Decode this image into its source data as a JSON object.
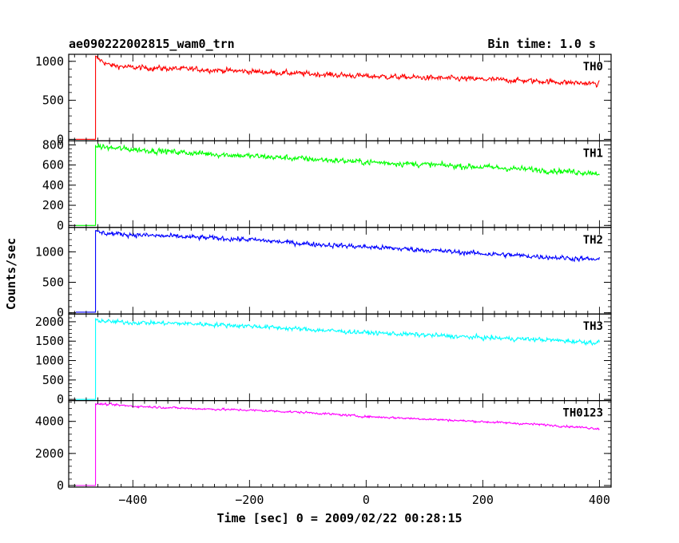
{
  "header": {
    "title": "ae090222002815_wam0_trn",
    "bin_time": "Bin time: 1.0 s"
  },
  "chart_data": {
    "type": "line",
    "xlabel": "Time [sec] 0 = 2009/02/22 00:28:15",
    "ylabel": "Counts/sec",
    "xlim": [
      -510,
      420
    ],
    "x_ticks": [
      -400,
      -200,
      0,
      200,
      400
    ],
    "x_tick_labels": [
      "−400",
      "−200",
      "0",
      "200",
      "400"
    ],
    "grid": false,
    "onset_time": -464,
    "panels": [
      {
        "name": "TH0",
        "color": "#ff0000",
        "ylim": [
          -20,
          1090
        ],
        "y_ticks": [
          0,
          500,
          1000
        ],
        "y_tick_labels": [
          "0",
          "500",
          "1000"
        ],
        "pre_level": 0,
        "points": [
          [
            -464,
            1050
          ],
          [
            -440,
            950
          ],
          [
            -400,
            920
          ],
          [
            -300,
            900
          ],
          [
            -200,
            870
          ],
          [
            -100,
            840
          ],
          [
            0,
            810
          ],
          [
            100,
            790
          ],
          [
            200,
            770
          ],
          [
            300,
            745
          ],
          [
            400,
            710
          ]
        ],
        "noise": 30
      },
      {
        "name": "TH1",
        "color": "#00ff00",
        "ylim": [
          -20,
          840
        ],
        "y_ticks": [
          0,
          200,
          400,
          600,
          800
        ],
        "y_tick_labels": [
          "0",
          "200",
          "400",
          "600",
          "800"
        ],
        "pre_level": 0,
        "points": [
          [
            -464,
            790
          ],
          [
            -440,
            770
          ],
          [
            -400,
            755
          ],
          [
            -300,
            720
          ],
          [
            -200,
            690
          ],
          [
            -100,
            660
          ],
          [
            0,
            630
          ],
          [
            100,
            605
          ],
          [
            200,
            580
          ],
          [
            300,
            550
          ],
          [
            400,
            520
          ]
        ],
        "noise": 25
      },
      {
        "name": "TH2",
        "color": "#0000ff",
        "ylim": [
          -20,
          1400
        ],
        "y_ticks": [
          0,
          500,
          1000
        ],
        "y_tick_labels": [
          "0",
          "500",
          "1000"
        ],
        "pre_level": 10,
        "points": [
          [
            -464,
            1320
          ],
          [
            -440,
            1300
          ],
          [
            -400,
            1280
          ],
          [
            -300,
            1240
          ],
          [
            -200,
            1200
          ],
          [
            -100,
            1130
          ],
          [
            0,
            1080
          ],
          [
            100,
            1030
          ],
          [
            200,
            970
          ],
          [
            300,
            920
          ],
          [
            400,
            870
          ]
        ],
        "noise": 35
      },
      {
        "name": "TH3",
        "color": "#00ffff",
        "ylim": [
          -30,
          2200
        ],
        "y_ticks": [
          0,
          500,
          1000,
          1500,
          2000
        ],
        "y_tick_labels": [
          "0",
          "500",
          "1000",
          "1500",
          "2000"
        ],
        "pre_level": 0,
        "points": [
          [
            -464,
            2050
          ],
          [
            -440,
            2000
          ],
          [
            -400,
            1980
          ],
          [
            -300,
            1950
          ],
          [
            -200,
            1890
          ],
          [
            -100,
            1800
          ],
          [
            0,
            1720
          ],
          [
            100,
            1660
          ],
          [
            200,
            1590
          ],
          [
            300,
            1540
          ],
          [
            400,
            1460
          ]
        ],
        "noise": 50
      },
      {
        "name": "TH0123",
        "color": "#ff00ff",
        "ylim": [
          -100,
          5300
        ],
        "y_ticks": [
          0,
          2000,
          4000
        ],
        "y_tick_labels": [
          "0",
          "2000",
          "4000"
        ],
        "pre_level": 0,
        "points": [
          [
            -464,
            5100
          ],
          [
            -440,
            5050
          ],
          [
            -400,
            4950
          ],
          [
            -300,
            4800
          ],
          [
            -200,
            4700
          ],
          [
            -100,
            4550
          ],
          [
            0,
            4300
          ],
          [
            100,
            4150
          ],
          [
            200,
            3980
          ],
          [
            300,
            3800
          ],
          [
            400,
            3550
          ]
        ],
        "noise": 60
      }
    ]
  }
}
